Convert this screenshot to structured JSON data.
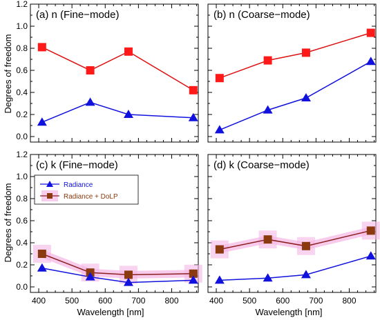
{
  "figure": {
    "ylabel": "Degrees of freedom",
    "xlabel": "Wavelength [nm]"
  },
  "colors": {
    "radiance": "#1111dd",
    "radiance_dolp_line": "#dd1111",
    "radiance_dolp_marker_upper": "#ff1a1a",
    "radiance_dolp_marker_lower": "#8b3a10",
    "radiance_dolp_line_lower": "#8b2020",
    "uncertainty_band": "#f5b8e6"
  },
  "chart_data": [
    {
      "type": "line",
      "title": "(a) n (Fine−mode)",
      "x": [
        410,
        555,
        670,
        865
      ],
      "xlim": [
        375,
        880
      ],
      "ylim": [
        -0.05,
        1.2
      ],
      "series": [
        {
          "name": "Radiance",
          "marker": "triangle",
          "values": [
            0.13,
            0.31,
            0.2,
            0.17
          ]
        },
        {
          "name": "Radiance + DoLP",
          "marker": "square",
          "values": [
            0.81,
            0.6,
            0.77,
            0.42
          ]
        }
      ]
    },
    {
      "type": "line",
      "title": "(b) n (Coarse−mode)",
      "x": [
        410,
        555,
        670,
        865
      ],
      "xlim": [
        375,
        880
      ],
      "ylim": [
        -0.05,
        1.2
      ],
      "series": [
        {
          "name": "Radiance",
          "marker": "triangle",
          "values": [
            0.06,
            0.24,
            0.35,
            0.68
          ]
        },
        {
          "name": "Radiance + DoLP",
          "marker": "square",
          "values": [
            0.53,
            0.69,
            0.76,
            0.94
          ]
        }
      ]
    },
    {
      "type": "line",
      "title": "(c) k (Fine−mode)",
      "x": [
        410,
        555,
        670,
        865
      ],
      "xlim": [
        375,
        880
      ],
      "ylim": [
        -0.05,
        1.2
      ],
      "legend": {
        "placement": "upper-left",
        "entries": [
          "Radiance",
          "Radiance + DoLP"
        ]
      },
      "series": [
        {
          "name": "Radiance",
          "marker": "triangle",
          "values": [
            0.17,
            0.09,
            0.04,
            0.06
          ]
        },
        {
          "name": "Radiance + DoLP",
          "marker": "square",
          "values": [
            0.3,
            0.13,
            0.11,
            0.12
          ]
        }
      ]
    },
    {
      "type": "line",
      "title": "(d) k (Coarse−mode)",
      "x": [
        410,
        555,
        670,
        865
      ],
      "xlim": [
        375,
        880
      ],
      "ylim": [
        -0.05,
        1.2
      ],
      "series": [
        {
          "name": "Radiance",
          "marker": "triangle",
          "values": [
            0.06,
            0.08,
            0.11,
            0.28
          ]
        },
        {
          "name": "Radiance + DoLP",
          "marker": "square",
          "values": [
            0.34,
            0.43,
            0.37,
            0.51
          ]
        }
      ]
    }
  ],
  "axes": {
    "yticks": [
      "0.0",
      "0.2",
      "0.4",
      "0.6",
      "0.8",
      "1.0",
      "1.2"
    ],
    "xticks": [
      "400",
      "500",
      "600",
      "700",
      "800"
    ]
  }
}
